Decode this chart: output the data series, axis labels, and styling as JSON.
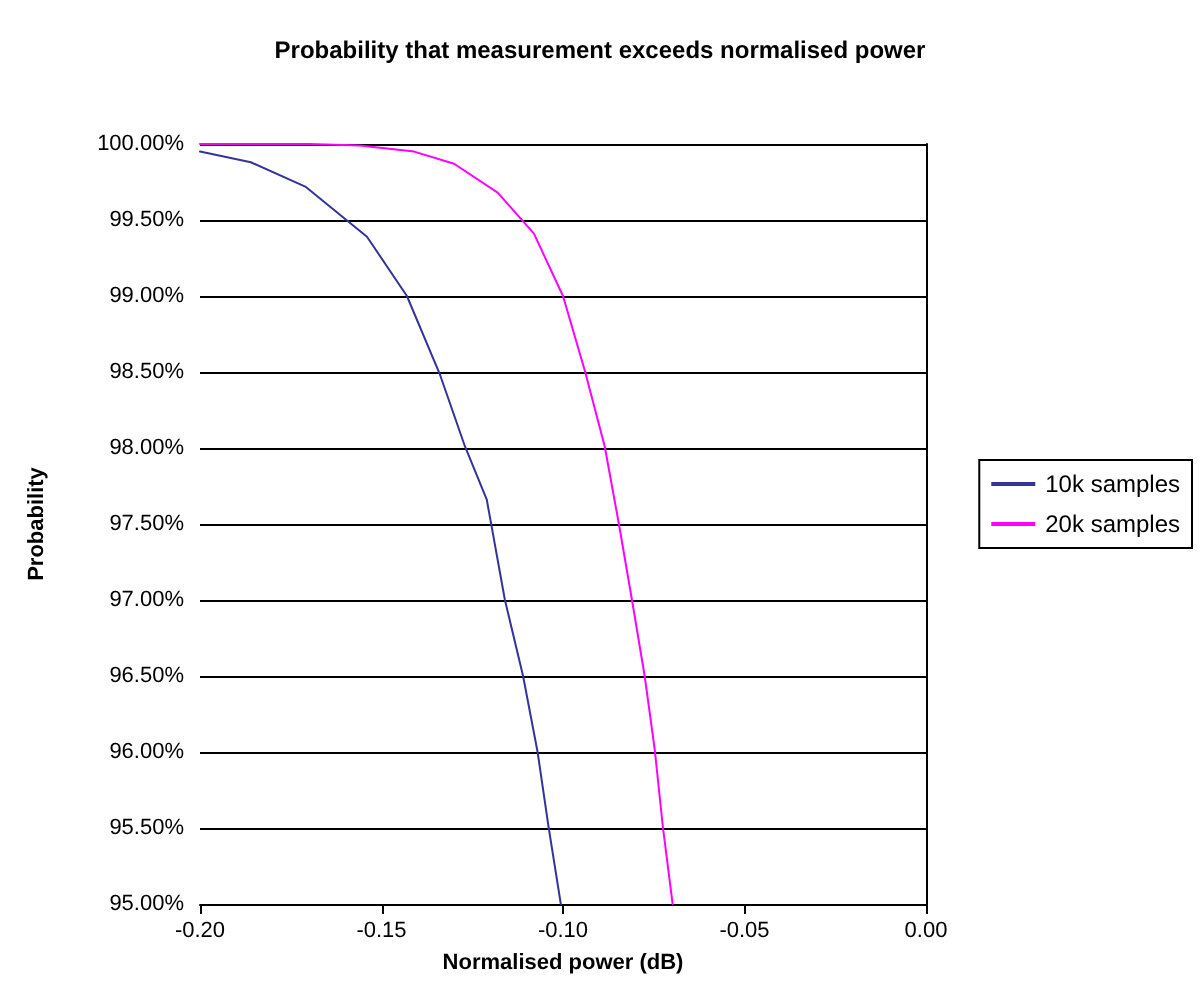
{
  "chart_data": {
    "type": "line",
    "title": "Probability that measurement exceeds normalised power",
    "xlabel": "Normalised power (dB)",
    "ylabel": "Probability",
    "xlim": [
      -0.2,
      0
    ],
    "xticks": [
      {
        "value": -0.2,
        "label": "-0.20"
      },
      {
        "value": -0.15,
        "label": "-0.15"
      },
      {
        "value": -0.1,
        "label": "-0.10"
      },
      {
        "value": -0.05,
        "label": "-0.05"
      },
      {
        "value": 0,
        "label": "0.00"
      }
    ],
    "ylim": [
      95,
      100
    ],
    "yticks": [
      {
        "value": 95,
        "label": "95.00%"
      },
      {
        "value": 95.5,
        "label": "95.50%"
      },
      {
        "value": 96,
        "label": "96.00%"
      },
      {
        "value": 96.5,
        "label": "96.50%"
      },
      {
        "value": 97,
        "label": "97.00%"
      },
      {
        "value": 97.5,
        "label": "97.50%"
      },
      {
        "value": 98,
        "label": "98.00%"
      },
      {
        "value": 98.5,
        "label": "98.50%"
      },
      {
        "value": 99,
        "label": "99.00%"
      },
      {
        "value": 99.5,
        "label": "99.50%"
      },
      {
        "value": 100,
        "label": "100.00%"
      }
    ],
    "grid": "y",
    "legend": "right",
    "marker": "none",
    "line_style": "solid",
    "series": [
      {
        "name": "10k samples",
        "color": "#333399",
        "x": [
          -0.2,
          -0.186,
          -0.171,
          -0.154,
          -0.143,
          -0.134,
          -0.127,
          -0.121,
          -0.116,
          -0.111,
          -0.107,
          -0.104,
          -0.1006
        ],
        "values": [
          99.95,
          99.88,
          99.72,
          99.39,
          99.0,
          98.49,
          98.01,
          97.66,
          97.0,
          96.5,
          96.0,
          95.51,
          95.0
        ]
      },
      {
        "name": "20k samples",
        "color": "#ff00ff",
        "x": [
          -0.2,
          -0.17,
          -0.156,
          -0.141,
          -0.13,
          -0.118,
          -0.108,
          -0.1,
          -0.094,
          -0.0885,
          -0.0846,
          -0.081,
          -0.0775,
          -0.0747,
          -0.0725,
          -0.0698
        ],
        "values": [
          100,
          100,
          99.99,
          99.95,
          99.87,
          99.68,
          99.41,
          99.0,
          98.51,
          98.01,
          97.5,
          97.0,
          96.5,
          96.01,
          95.51,
          95.0
        ]
      }
    ]
  }
}
